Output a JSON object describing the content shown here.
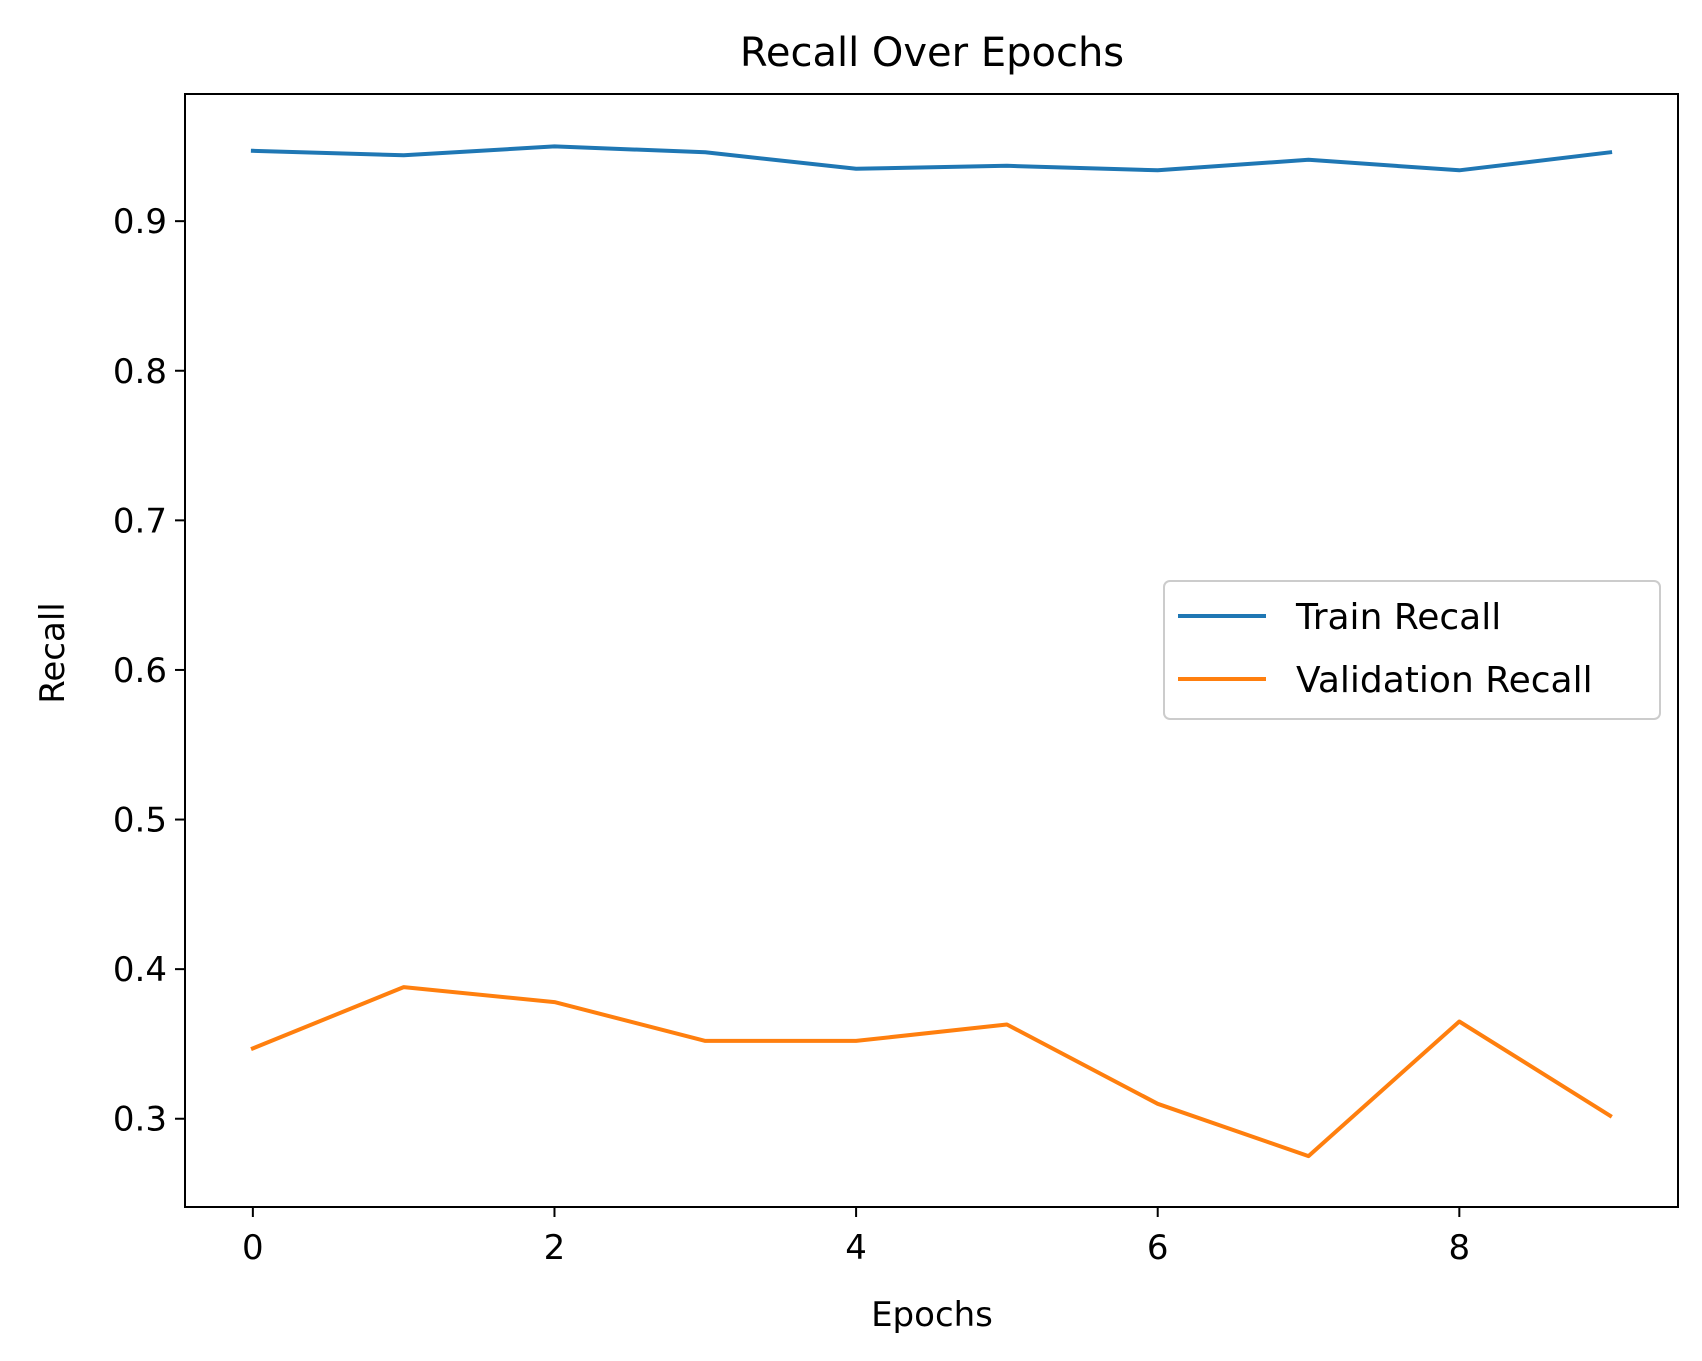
{
  "chart_data": {
    "type": "line",
    "title": "Recall Over Epochs",
    "xlabel": "Epochs",
    "ylabel": "Recall",
    "x": [
      0,
      1,
      2,
      3,
      4,
      5,
      6,
      7,
      8,
      9
    ],
    "xlim": [
      -0.45,
      9.45
    ],
    "ylim": [
      0.241,
      0.985
    ],
    "xticks": [
      0,
      2,
      4,
      6,
      8
    ],
    "yticks": [
      0.3,
      0.4,
      0.5,
      0.6,
      0.7,
      0.8,
      0.9
    ],
    "grid": false,
    "legend_position": "center-right",
    "series": [
      {
        "name": "Train Recall",
        "color": "#1f77b4",
        "values": [
          0.947,
          0.944,
          0.95,
          0.946,
          0.935,
          0.937,
          0.934,
          0.941,
          0.934,
          0.946
        ]
      },
      {
        "name": "Validation Recall",
        "color": "#ff7f0e",
        "values": [
          0.347,
          0.388,
          0.378,
          0.352,
          0.352,
          0.363,
          0.31,
          0.275,
          0.365,
          0.302
        ]
      }
    ]
  }
}
